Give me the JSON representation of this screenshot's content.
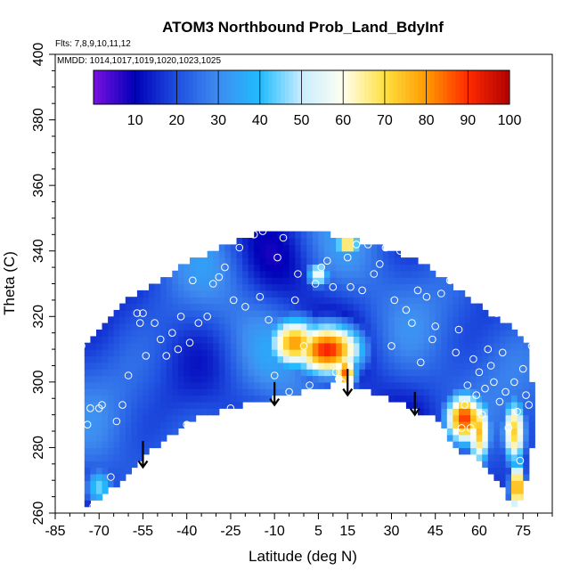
{
  "header": {
    "title": "ATOM3 Northbound Prob_Land_BdyInf",
    "flights_label": "Flts: 7,8,9,10,11,12",
    "mmdd_label": "MMDD: 1014,1017,1019,1020,1023,1025"
  },
  "colors": {
    "scale": [
      "#7a10e0",
      "#0000b8",
      "#1f4fe0",
      "#3f8cf0",
      "#1fbcff",
      "#c8ecff",
      "#fffff0",
      "#ffe040",
      "#ff9a00",
      "#ff2a00",
      "#b00000"
    ]
  },
  "chart_data": {
    "type": "heatmap",
    "title": "ATOM3 Northbound Prob_Land_BdyInf",
    "xlabel": "Latitude (deg N)",
    "ylabel": "Theta (C)",
    "xlim": [
      -85,
      85
    ],
    "ylim": [
      260,
      400
    ],
    "x_ticks": [
      -85,
      -70,
      -55,
      -40,
      -25,
      -10,
      5,
      15,
      30,
      45,
      60,
      75
    ],
    "y_ticks": [
      260,
      280,
      300,
      320,
      340,
      360,
      380,
      400
    ],
    "colorbar": {
      "range": [
        0,
        100
      ],
      "ticks": [
        10,
        20,
        30,
        40,
        50,
        60,
        70,
        80,
        90,
        100
      ]
    },
    "lower_boundary": [
      [
        -75,
        262
      ],
      [
        -68,
        266
      ],
      [
        -62,
        270
      ],
      [
        -56,
        276
      ],
      [
        -50,
        281
      ],
      [
        -44,
        285
      ],
      [
        -38,
        289
      ],
      [
        -30,
        291
      ],
      [
        -22,
        293
      ],
      [
        -12,
        295
      ],
      [
        -2,
        297
      ],
      [
        8,
        299
      ],
      [
        12,
        300.5
      ],
      [
        18,
        299
      ],
      [
        26,
        296
      ],
      [
        34,
        293.5
      ],
      [
        40,
        291
      ],
      [
        46,
        289
      ],
      [
        50,
        283
      ],
      [
        52,
        281
      ],
      [
        55,
        277
      ],
      [
        58,
        279
      ],
      [
        62,
        274
      ],
      [
        66,
        270
      ],
      [
        70,
        265
      ],
      [
        73,
        260
      ],
      [
        76,
        270
      ],
      [
        79,
        285
      ]
    ],
    "upper_boundary": [
      [
        -76,
        296
      ],
      [
        -74,
        312
      ],
      [
        -70,
        316
      ],
      [
        -66,
        320
      ],
      [
        -62,
        324
      ],
      [
        -56,
        328
      ],
      [
        -50,
        330
      ],
      [
        -44,
        334
      ],
      [
        -36,
        338
      ],
      [
        -26,
        342
      ],
      [
        -16,
        345
      ],
      [
        -8,
        346
      ],
      [
        0,
        346
      ],
      [
        8,
        345
      ],
      [
        16,
        344
      ],
      [
        26,
        341
      ],
      [
        36,
        338
      ],
      [
        44,
        334
      ],
      [
        50,
        330
      ],
      [
        56,
        326
      ],
      [
        62,
        322
      ],
      [
        68,
        318
      ],
      [
        72,
        316
      ],
      [
        76,
        312
      ],
      [
        79,
        295
      ]
    ],
    "hotspots": [
      {
        "lat": 8,
        "theta": 310,
        "value": 92,
        "sx": 9,
        "sy": 6
      },
      {
        "lat": -3,
        "theta": 312,
        "value": 80,
        "sx": 7,
        "sy": 6
      },
      {
        "lat": 14,
        "theta": 303,
        "value": 85,
        "sx": 3,
        "sy": 4
      },
      {
        "lat": 15,
        "theta": 342,
        "value": 80,
        "sx": 3,
        "sy": 2
      },
      {
        "lat": 5,
        "theta": 333,
        "value": 60,
        "sx": 3,
        "sy": 3
      },
      {
        "lat": 55,
        "theta": 289,
        "value": 90,
        "sx": 5,
        "sy": 6
      },
      {
        "lat": 60,
        "theta": 285,
        "value": 75,
        "sx": 3,
        "sy": 8
      },
      {
        "lat": 72,
        "theta": 285,
        "value": 72,
        "sx": 3,
        "sy": 8
      },
      {
        "lat": 73,
        "theta": 268,
        "value": 85,
        "sx": 2,
        "sy": 6
      },
      {
        "lat": -70,
        "theta": 268,
        "value": 45,
        "sx": 4,
        "sy": 5
      }
    ],
    "arrows": [
      {
        "lat": -55,
        "theta_start": 282,
        "theta_end": 274
      },
      {
        "lat": -10,
        "theta_start": 300,
        "theta_end": 293
      },
      {
        "lat": 15,
        "theta_start": 304,
        "theta_end": 296
      },
      {
        "lat": 38,
        "theta_start": 297,
        "theta_end": 290
      }
    ],
    "observations": [
      [
        -77,
        296
      ],
      [
        -76,
        311
      ],
      [
        -74,
        287
      ],
      [
        -73,
        292
      ],
      [
        -72,
        262
      ],
      [
        -70,
        292
      ],
      [
        -69,
        293
      ],
      [
        -66,
        271
      ],
      [
        -64,
        288
      ],
      [
        -62,
        293
      ],
      [
        -60,
        302
      ],
      [
        -57,
        321
      ],
      [
        -56,
        318
      ],
      [
        -55,
        321
      ],
      [
        -54,
        308
      ],
      [
        -51,
        318
      ],
      [
        -49,
        313
      ],
      [
        -47,
        308
      ],
      [
        -45,
        315
      ],
      [
        -43,
        310
      ],
      [
        -42,
        320
      ],
      [
        -40,
        287
      ],
      [
        -39,
        312
      ],
      [
        -38,
        331
      ],
      [
        -36,
        318
      ],
      [
        -34,
        287
      ],
      [
        -33,
        320
      ],
      [
        -31,
        330
      ],
      [
        -29,
        332
      ],
      [
        -27,
        335
      ],
      [
        -25,
        292
      ],
      [
        -24,
        325
      ],
      [
        -22,
        341
      ],
      [
        -20,
        323
      ],
      [
        -17,
        345
      ],
      [
        -15,
        326
      ],
      [
        -14,
        346
      ],
      [
        -12,
        319
      ],
      [
        -10,
        302
      ],
      [
        -9,
        338
      ],
      [
        -7,
        344
      ],
      [
        -5,
        297
      ],
      [
        -3,
        325
      ],
      [
        -2,
        333
      ],
      [
        0,
        311
      ],
      [
        2,
        299
      ],
      [
        4,
        330
      ],
      [
        6,
        335
      ],
      [
        8,
        337
      ],
      [
        10,
        329
      ],
      [
        11,
        303
      ],
      [
        12,
        301
      ],
      [
        13,
        300
      ],
      [
        14,
        346
      ],
      [
        15,
        338
      ],
      [
        16,
        329
      ],
      [
        18,
        342
      ],
      [
        20,
        328
      ],
      [
        22,
        342
      ],
      [
        24,
        333
      ],
      [
        26,
        336
      ],
      [
        28,
        341
      ],
      [
        30,
        311
      ],
      [
        31,
        325
      ],
      [
        33,
        340
      ],
      [
        35,
        322
      ],
      [
        37,
        318
      ],
      [
        39,
        328
      ],
      [
        40,
        306
      ],
      [
        42,
        326
      ],
      [
        44,
        313
      ],
      [
        45,
        317
      ],
      [
        47,
        327
      ],
      [
        48,
        334
      ],
      [
        50,
        331
      ],
      [
        52,
        309
      ],
      [
        53,
        316
      ],
      [
        54,
        286
      ],
      [
        55,
        293
      ],
      [
        56,
        299
      ],
      [
        57,
        286
      ],
      [
        58,
        307
      ],
      [
        59,
        296
      ],
      [
        60,
        303
      ],
      [
        61,
        290
      ],
      [
        62,
        298
      ],
      [
        63,
        310
      ],
      [
        64,
        305
      ],
      [
        65,
        300
      ],
      [
        66,
        321
      ],
      [
        67,
        294
      ],
      [
        68,
        309
      ],
      [
        69,
        297
      ],
      [
        70,
        286
      ],
      [
        72,
        300
      ],
      [
        73,
        291
      ],
      [
        74,
        276
      ],
      [
        75,
        304
      ],
      [
        76,
        296
      ],
      [
        77,
        293
      ],
      [
        78,
        311
      ]
    ]
  }
}
